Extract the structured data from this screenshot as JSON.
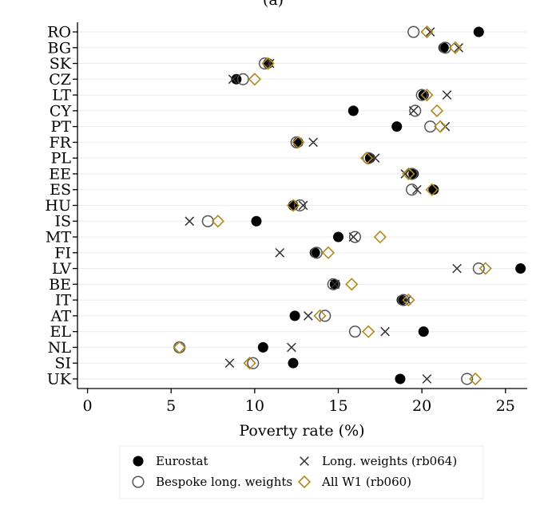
{
  "chart_data": {
    "type": "scatter",
    "title": "(a)",
    "xlabel": "Poverty rate (%)",
    "ylabel": "",
    "xlim": [
      -0.6,
      26.3
    ],
    "xticks": [
      0,
      5,
      10,
      15,
      20,
      25
    ],
    "grid": "horizontal",
    "legend_position": "bottom",
    "categories": [
      "RO",
      "BG",
      "SK",
      "CZ",
      "LT",
      "CY",
      "PT",
      "FR",
      "PL",
      "EE",
      "ES",
      "HU",
      "IS",
      "MT",
      "FI",
      "LV",
      "BE",
      "IT",
      "AT",
      "EL",
      "NL",
      "SI",
      "UK"
    ],
    "series": [
      {
        "name": "Eurostat",
        "marker": "filled-circle",
        "color": "#000000",
        "values": [
          23.4,
          21.3,
          10.8,
          8.9,
          20.1,
          15.9,
          18.5,
          12.6,
          16.9,
          19.5,
          20.7,
          12.3,
          10.1,
          15.0,
          13.6,
          25.9,
          14.8,
          18.8,
          12.4,
          20.1,
          10.5,
          12.3,
          18.7
        ]
      },
      {
        "name": "Bespoke long. weights",
        "marker": "hollow-circle",
        "color": "#555555",
        "values": [
          19.5,
          21.4,
          10.6,
          9.3,
          20.0,
          19.6,
          20.5,
          12.5,
          16.8,
          19.4,
          19.4,
          12.7,
          7.2,
          16.0,
          13.7,
          23.4,
          14.7,
          18.9,
          14.2,
          16.0,
          5.5,
          9.9,
          22.7
        ]
      },
      {
        "name": "Long. weights (rb064)",
        "marker": "x",
        "color": "#333333",
        "values": [
          20.5,
          22.2,
          10.9,
          8.7,
          21.5,
          19.5,
          21.4,
          13.5,
          17.2,
          19.0,
          19.7,
          12.9,
          6.1,
          15.9,
          11.5,
          22.1,
          14.8,
          19.1,
          13.2,
          17.8,
          12.2,
          8.5,
          20.3
        ]
      },
      {
        "name": "All W1 (rb060)",
        "marker": "diamond",
        "color": "#b08a1e",
        "values": [
          20.3,
          22.0,
          10.8,
          10.0,
          20.3,
          20.9,
          21.1,
          12.6,
          16.7,
          19.2,
          20.6,
          12.3,
          7.8,
          17.5,
          14.4,
          23.8,
          15.8,
          19.2,
          13.9,
          16.8,
          5.5,
          9.7,
          23.2
        ]
      }
    ]
  }
}
